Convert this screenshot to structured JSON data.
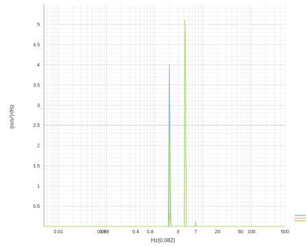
{
  "chart_data": {
    "type": "line",
    "xlabel": "Hz(0.082)",
    "ylabel": "(m/s²)²/Hz",
    "x_scale": "log",
    "xlim": [
      0.005,
      500
    ],
    "ylim": [
      0,
      5.5
    ],
    "x_ticks": [
      {
        "label": "0.01",
        "value": 0.01
      },
      {
        "label": "0.08",
        "value": 0.08
      },
      {
        "label": "0.09",
        "value": 0.09
      },
      {
        "label": "0.4",
        "value": 0.4
      },
      {
        "label": "0.8",
        "value": 0.8
      },
      {
        "label": "3",
        "value": 3
      },
      {
        "label": "7",
        "value": 7
      },
      {
        "label": "20",
        "value": 20
      },
      {
        "label": "60",
        "value": 60
      },
      {
        "label": "100",
        "value": 100
      },
      {
        "label": "500",
        "value": 500
      }
    ],
    "y_ticks": [
      0.5,
      1,
      1.5,
      2,
      2.5,
      3,
      3.5,
      4,
      4.5,
      5
    ],
    "grid": true,
    "reference_line": 2.5,
    "series": [
      {
        "color": "#8ab4e8",
        "x": [
          0.005,
          1.9,
          2.0,
          2.05,
          2.1,
          2.2,
          500
        ],
        "y": [
          0,
          0,
          4.0,
          2.4,
          0.2,
          0,
          0
        ]
      },
      {
        "color": "#f0b86e",
        "x": [
          0.005,
          1.9,
          2.0,
          2.1,
          2.2,
          500
        ],
        "y": [
          0,
          0,
          0.3,
          0.1,
          0,
          0
        ]
      },
      {
        "color": "#a8dc64",
        "x": [
          0.005,
          1.95,
          2.0,
          2.05,
          2.15,
          2.2,
          4.1,
          4.2,
          4.3,
          4.4,
          4.5,
          6.8,
          7.0,
          7.2,
          500
        ],
        "y": [
          0,
          0,
          2.3,
          1.9,
          0.1,
          0,
          0,
          5.1,
          4.6,
          2.2,
          0,
          0,
          0.12,
          0,
          0
        ]
      }
    ],
    "legend_placement": "bottom-right",
    "colors": {
      "grid": "#e4e4e4",
      "reference": "#aaaaaa",
      "axis": "#999999"
    }
  }
}
